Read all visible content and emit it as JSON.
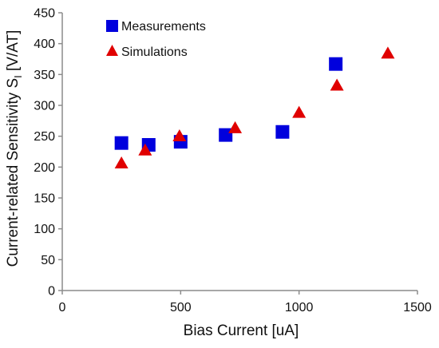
{
  "chart_data": {
    "type": "scatter",
    "xlabel": "Bias Current [uA]",
    "ylabel": "Current-related Sensitivity S",
    "ylabel_subscript": "I",
    "ylabel_unit": " [V/AT]",
    "xlim": [
      0,
      1500
    ],
    "ylim": [
      0,
      450
    ],
    "xticks": [
      0,
      500,
      1000,
      1500
    ],
    "yticks": [
      0,
      50,
      100,
      150,
      200,
      250,
      300,
      350,
      400,
      450
    ],
    "grid": false,
    "legend_position": "top-left",
    "series": [
      {
        "name": "Measurements",
        "marker": "square",
        "color": "#0000dd",
        "points": [
          {
            "x": 250,
            "y": 239
          },
          {
            "x": 365,
            "y": 236
          },
          {
            "x": 500,
            "y": 241
          },
          {
            "x": 690,
            "y": 252
          },
          {
            "x": 930,
            "y": 257
          },
          {
            "x": 1155,
            "y": 367
          }
        ]
      },
      {
        "name": "Simulations",
        "marker": "triangle",
        "color": "#e00000",
        "points": [
          {
            "x": 250,
            "y": 206
          },
          {
            "x": 350,
            "y": 227
          },
          {
            "x": 495,
            "y": 250
          },
          {
            "x": 730,
            "y": 263
          },
          {
            "x": 1000,
            "y": 288
          },
          {
            "x": 1160,
            "y": 332
          },
          {
            "x": 1375,
            "y": 384
          }
        ]
      }
    ]
  }
}
